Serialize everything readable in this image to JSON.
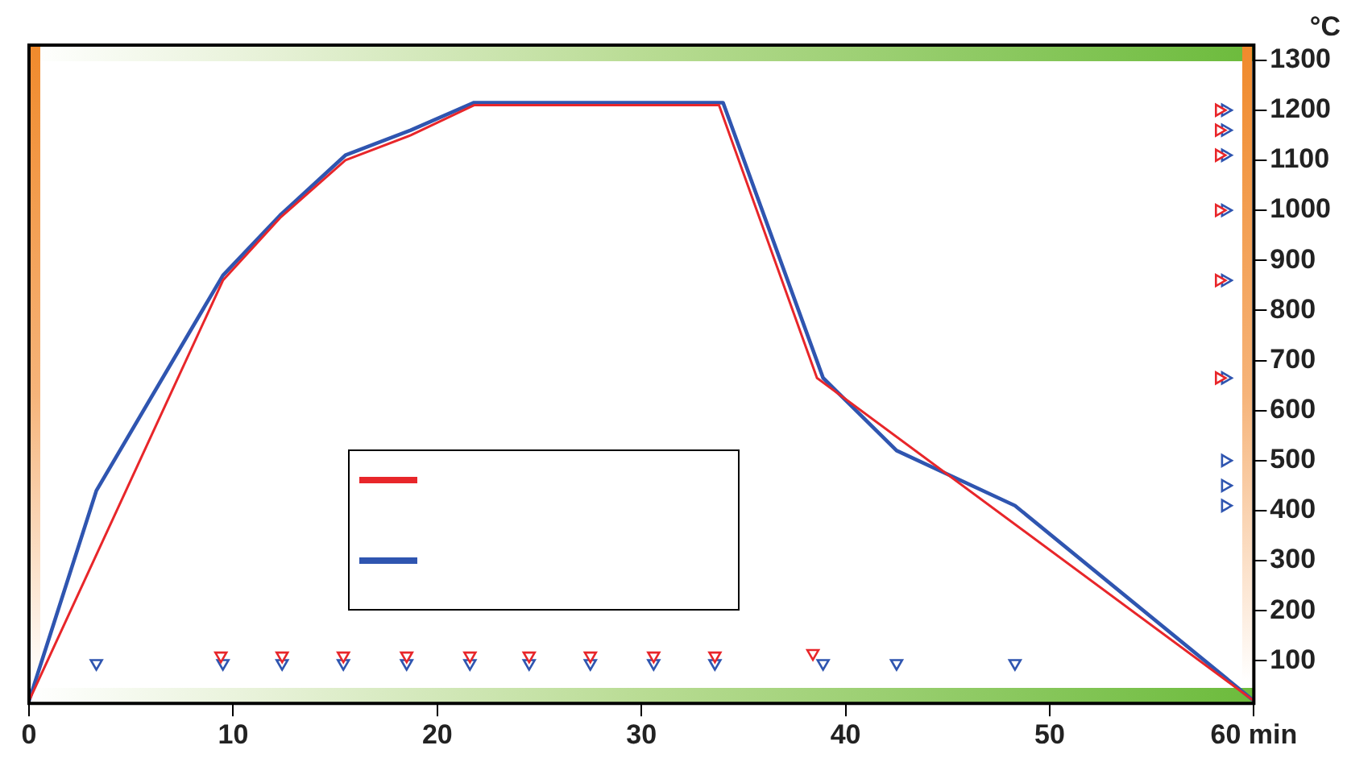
{
  "chart_data": {
    "type": "line",
    "ylabel": "°C",
    "xlim": [
      0,
      60
    ],
    "ylim": [
      15,
      1330
    ],
    "xticks": [
      0,
      10,
      20,
      30,
      40,
      50,
      {
        "value": 60,
        "label": "60 min"
      }
    ],
    "yticks": [
      100,
      200,
      300,
      400,
      500,
      600,
      700,
      800,
      900,
      1000,
      1100,
      1200,
      1300
    ],
    "grid": false,
    "marker": "none",
    "line_style": "solid",
    "series": [
      {
        "color": "#e8262a",
        "x": [
          0,
          9.5,
          12.3,
          15.5,
          18.7,
          21.8,
          33.8,
          38.6,
          60
        ],
        "values": [
          20,
          860,
          985,
          1100,
          1150,
          1210,
          1210,
          665,
          20
        ]
      },
      {
        "color": "#2f55b0",
        "x": [
          0,
          3.3,
          9.5,
          12.3,
          15.5,
          18.7,
          21.8,
          34,
          38.9,
          42.5,
          48.3,
          60
        ],
        "values": [
          20,
          440,
          870,
          990,
          1110,
          1160,
          1215,
          1215,
          665,
          520,
          410,
          20
        ]
      },
      {
        "type": "scatter",
        "marker": "triangle",
        "color": "#e8262a",
        "x": [
          9.4,
          12.4,
          15.4,
          18.5,
          21.6,
          24.5,
          27.5,
          30.6,
          33.6,
          38.4
        ],
        "values": [
          110,
          110,
          110,
          110,
          110,
          110,
          110,
          110,
          110,
          115
        ]
      },
      {
        "type": "scatter",
        "marker": "triangle",
        "color": "#2f55b0",
        "x": [
          3.3,
          9.5,
          12.4,
          15.4,
          18.5,
          21.6,
          24.5,
          27.5,
          30.6,
          33.6,
          38.9,
          42.5,
          48.3
        ],
        "values": [
          95,
          95,
          95,
          95,
          95,
          95,
          95,
          95,
          95,
          95,
          95,
          95,
          95
        ]
      },
      {
        "type": "scatter",
        "marker": "triangle",
        "color": "#e8262a",
        "x": [
          58.3,
          58.3,
          58.3,
          58.3,
          58.3,
          58.3
        ],
        "values": [
          1200,
          1160,
          1110,
          1000,
          860,
          665
        ]
      },
      {
        "type": "scatter",
        "marker": "triangle",
        "color": "#2f55b0",
        "x": [
          58.6,
          58.6,
          58.6,
          58.6,
          58.6,
          58.6,
          58.6,
          58.6,
          58.6
        ],
        "values": [
          1200,
          1160,
          1110,
          1000,
          860,
          665,
          500,
          450,
          410
        ]
      }
    ]
  }
}
